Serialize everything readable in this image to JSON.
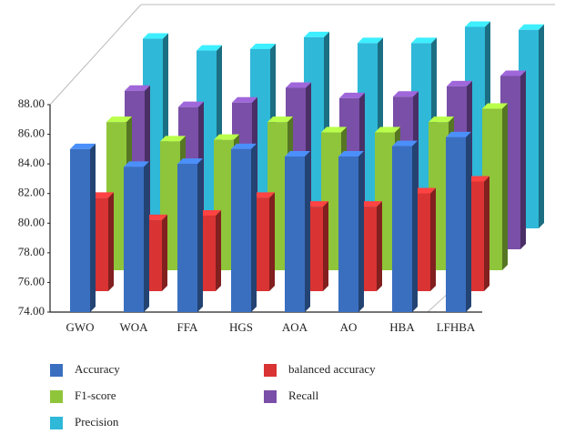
{
  "chart_data": {
    "type": "bar3d",
    "categories": [
      "GWO",
      "WOA",
      "FFA",
      "HGS",
      "AOA",
      "AO",
      "HBA",
      "LFHBA"
    ],
    "series": [
      {
        "name": "Accuracy",
        "color": "#3a6fc0",
        "values": [
          85.0,
          83.8,
          84.0,
          85.0,
          84.5,
          84.5,
          85.2,
          85.8
        ]
      },
      {
        "name": "balanced accuracy",
        "color": "#d93333",
        "values": [
          80.3,
          78.8,
          79.1,
          80.3,
          79.7,
          79.7,
          80.6,
          81.4
        ]
      },
      {
        "name": "F1-score",
        "color": "#8fc53a",
        "values": [
          84.0,
          82.7,
          82.8,
          84.0,
          83.3,
          83.3,
          84.0,
          84.9
        ]
      },
      {
        "name": "Recall",
        "color": "#7a4fa8",
        "values": [
          84.7,
          83.6,
          83.9,
          84.9,
          84.2,
          84.3,
          85.0,
          85.7
        ]
      },
      {
        "name": "Precision",
        "color": "#2fb8d8",
        "values": [
          86.8,
          86.0,
          86.1,
          86.9,
          86.5,
          86.5,
          87.6,
          87.4
        ]
      }
    ],
    "ylim": [
      74,
      88
    ],
    "yticks": [
      {
        "value": 74,
        "label": "74.00"
      },
      {
        "value": 76,
        "label": "76.00"
      },
      {
        "value": 78,
        "label": "78.00"
      },
      {
        "value": 80,
        "label": "80.00"
      },
      {
        "value": 82,
        "label": "82.00"
      },
      {
        "value": 84,
        "label": "84.00"
      },
      {
        "value": 86,
        "label": "86.00"
      },
      {
        "value": 88,
        "label": "88.00"
      }
    ]
  }
}
